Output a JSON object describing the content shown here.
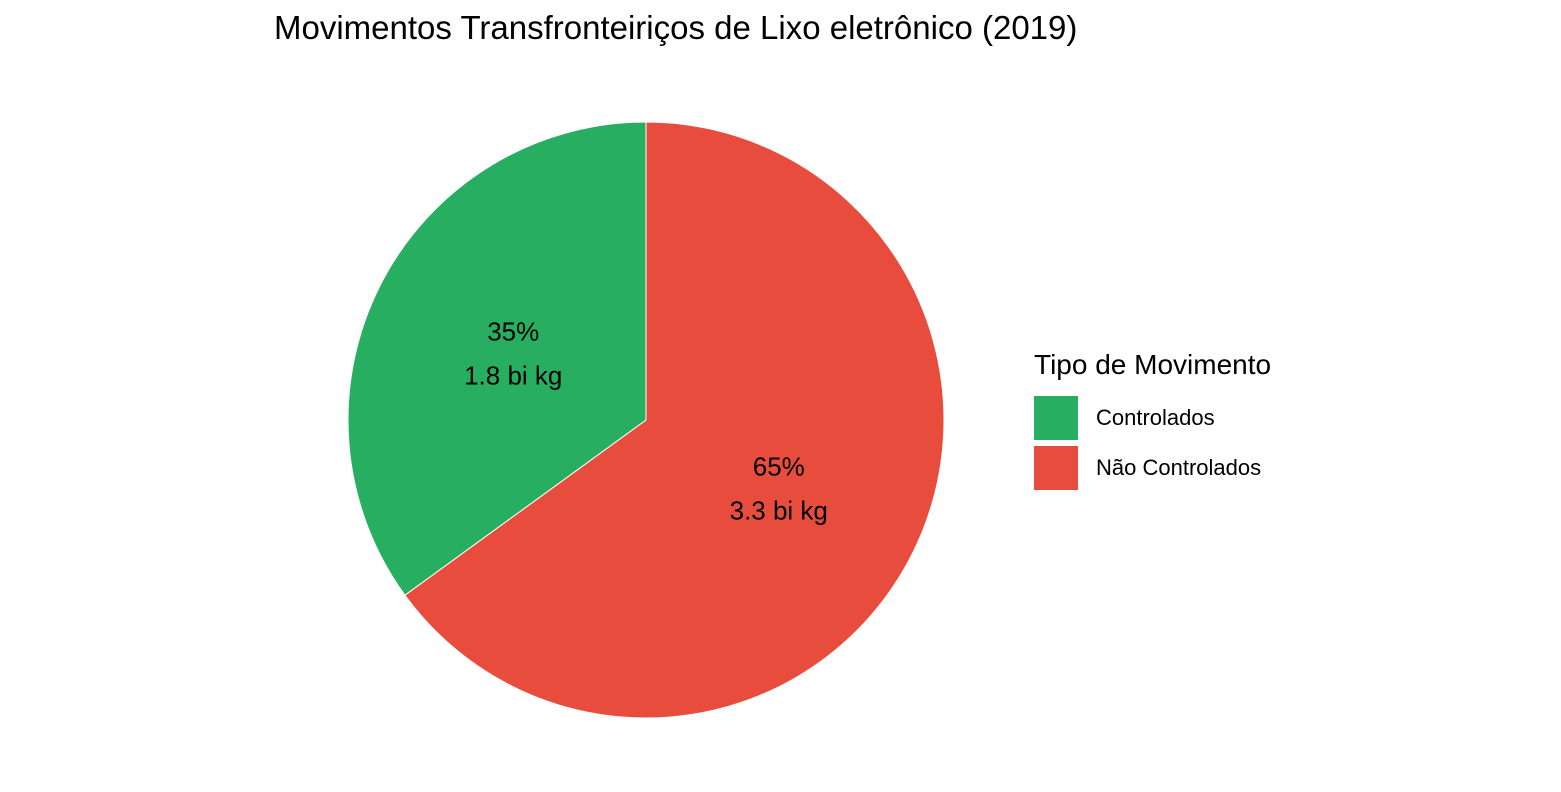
{
  "chart_data": {
    "type": "pie",
    "title": "Movimentos Transfronteiriços de Lixo eletrônico (2019)",
    "legend_title": "Tipo de Movimento",
    "legend_position": "right",
    "slices": [
      {
        "name": "Controlados",
        "percent": 35,
        "percent_label": "35%",
        "value_label": "1.8 bi kg",
        "value": 1.8,
        "color": "#27ae60"
      },
      {
        "name": "Não Controlados",
        "percent": 65,
        "percent_label": "65%",
        "value_label": "3.3 bi kg",
        "value": 3.3,
        "color": "#e74c3c"
      }
    ]
  }
}
